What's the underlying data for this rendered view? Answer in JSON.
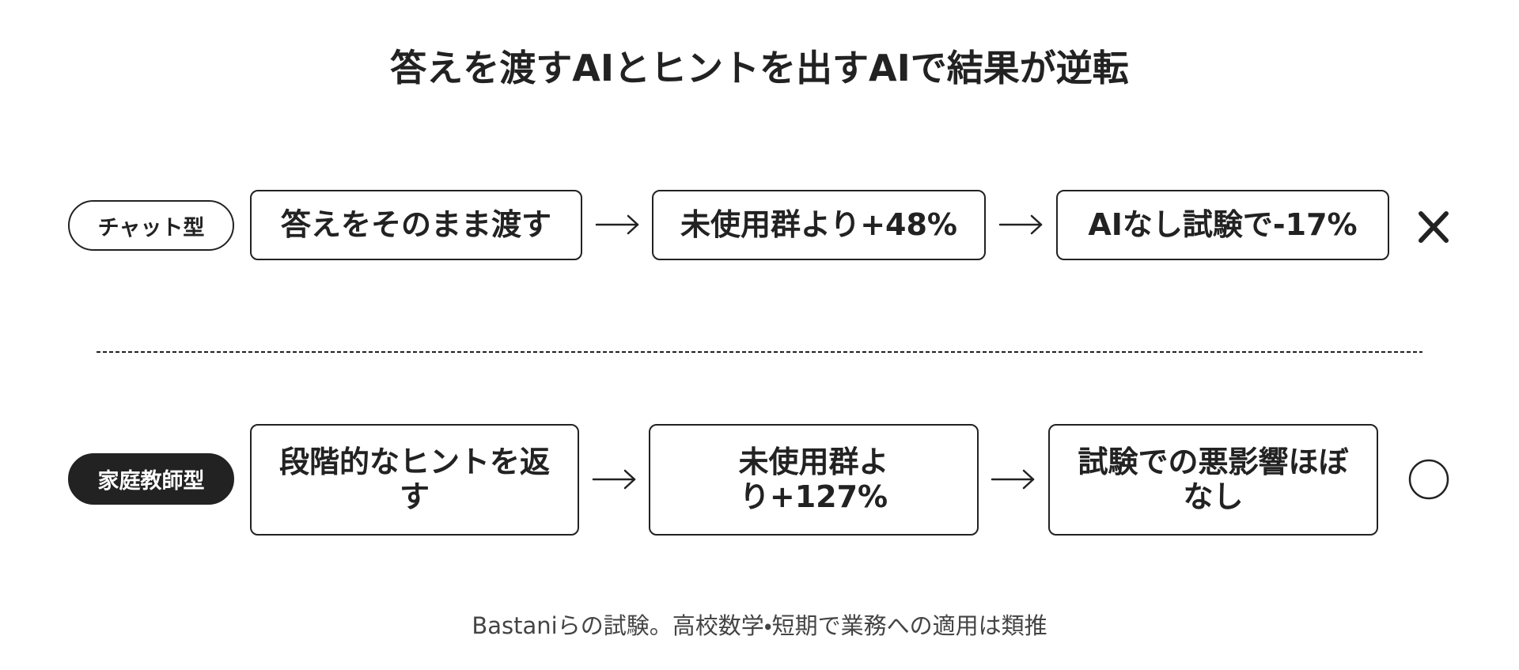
{
  "title": "答えを渡すAIとヒントを出すAIで結果が逆転",
  "rows": [
    {
      "label": "チャット型",
      "steps": [
        "答えをそのまま渡す",
        "未使用群より+48%",
        "AIなし試験で-17%"
      ]
    },
    {
      "label": "家庭教師型",
      "steps": [
        "段階的なヒントを返す",
        "未使用群より+127%",
        "試験での悪影響ほぼなし"
      ]
    }
  ],
  "footnote": "Bastaniらの試験。高校数学・短期で業務への適用は類推"
}
